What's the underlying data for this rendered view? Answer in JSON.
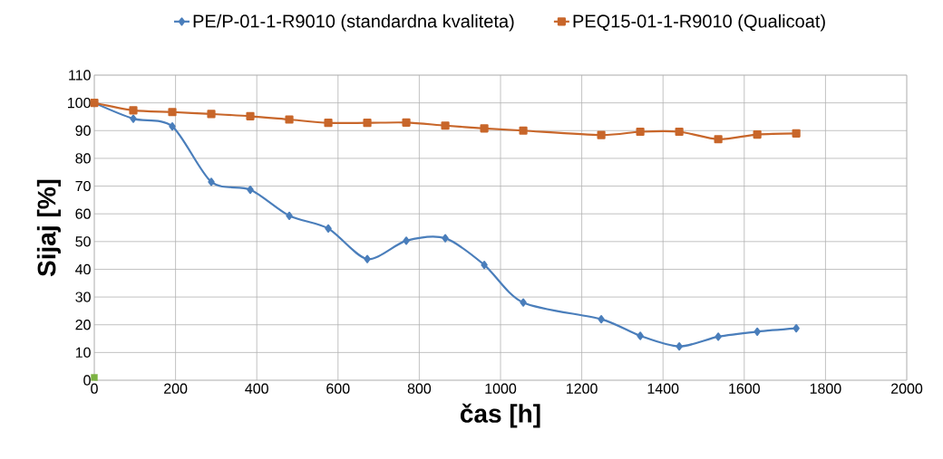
{
  "chart_data": {
    "type": "line",
    "xlabel": "čas [h]",
    "ylabel": "Sijaj [%]",
    "x": [
      0,
      96,
      192,
      288,
      384,
      480,
      576,
      672,
      768,
      864,
      960,
      1056,
      1248,
      1344,
      1440,
      1536,
      1632,
      1728
    ],
    "series": [
      {
        "name": "PE/P-01-1-R9010 (standardna kvaliteta)",
        "color": "#4a7ebb",
        "marker": "diamond",
        "values": [
          100,
          94.3,
          91.5,
          71.5,
          68.7,
          59.3,
          54.7,
          43.7,
          50.3,
          51.2,
          41.6,
          28,
          22,
          16,
          12.2,
          15.7,
          17.5,
          18.7
        ]
      },
      {
        "name": "PEQ15-01-1-R9010 (Qualicoat)",
        "color": "#c8662a",
        "marker": "square",
        "values": [
          100,
          97.3,
          96.7,
          96,
          95.2,
          94,
          92.8,
          92.8,
          92.9,
          91.8,
          90.8,
          90,
          88.4,
          89.6,
          89.6,
          86.9,
          88.6,
          89
        ]
      },
      {
        "type": "scatter",
        "color": "#7cb342",
        "marker": "square",
        "x": [
          0
        ],
        "values": [
          1
        ]
      }
    ],
    "xlim": [
      0,
      2000
    ],
    "xticks": [
      0,
      200,
      400,
      600,
      800,
      1000,
      1200,
      1400,
      1600,
      1800,
      2000
    ],
    "ylim": [
      0,
      110
    ],
    "yticks": [
      0,
      10,
      20,
      30,
      40,
      50,
      60,
      70,
      80,
      90,
      100,
      110
    ],
    "grid": true,
    "legend": "top"
  }
}
